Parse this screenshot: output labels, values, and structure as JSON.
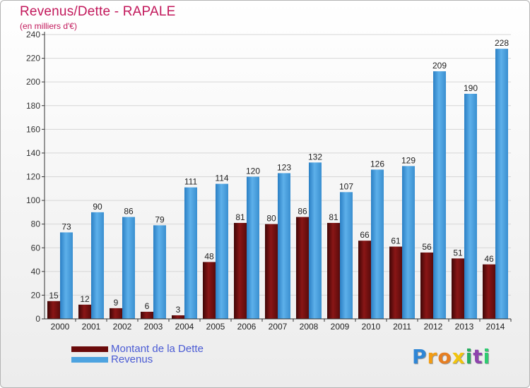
{
  "title": "Revenus/Dette - RAPALE",
  "subtitle": "(en milliers d'€)",
  "colors": {
    "title": "#c2185b",
    "legend_text": "#4a5bd4",
    "dette": "#7a1010",
    "revenus": "#4da3e0"
  },
  "legend": {
    "items": [
      {
        "label": "Montant de la Dette",
        "color": "#6a0a0a"
      },
      {
        "label": "Revenus",
        "color": "#4da3e0"
      }
    ]
  },
  "logo": {
    "letters": [
      "P",
      "r",
      "o",
      "x",
      "i",
      "t",
      "i"
    ],
    "colors": [
      "#2e86d6",
      "#f39c12",
      "#e67e22",
      "#f1c40f",
      "#27ae60",
      "#8e44ad",
      "#2ecc71"
    ]
  },
  "chart_data": {
    "type": "bar",
    "title": "Revenus/Dette - RAPALE",
    "subtitle": "(en milliers d'€)",
    "categories": [
      "2000",
      "2001",
      "2002",
      "2003",
      "2004",
      "2005",
      "2006",
      "2007",
      "2008",
      "2009",
      "2010",
      "2011",
      "2012",
      "2013",
      "2014"
    ],
    "series": [
      {
        "name": "Montant de la Dette",
        "values": [
          15,
          12,
          9,
          6,
          3,
          48,
          81,
          80,
          86,
          81,
          66,
          61,
          56,
          51,
          46
        ]
      },
      {
        "name": "Revenus",
        "values": [
          73,
          90,
          86,
          79,
          111,
          114,
          120,
          123,
          132,
          107,
          126,
          129,
          209,
          190,
          228
        ]
      }
    ],
    "ylim": [
      0,
      240
    ],
    "yticks": [
      0,
      20,
      40,
      60,
      80,
      100,
      120,
      140,
      160,
      180,
      200,
      220,
      240
    ],
    "grid": true,
    "legend_position": "bottom-left"
  }
}
